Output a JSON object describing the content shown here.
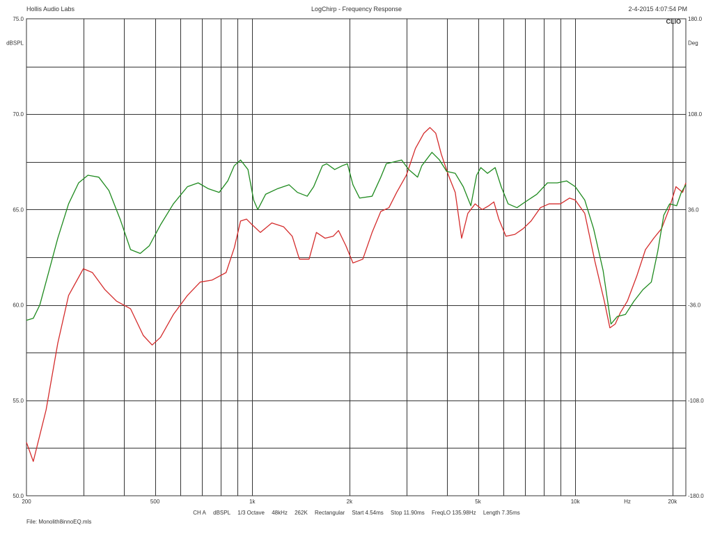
{
  "header": {
    "company": "Hollis Audio Labs",
    "title": "LogChirp - Frequency Response",
    "timestamp": "2-4-2015 4:07:54 PM",
    "brand": "CLIO"
  },
  "params": {
    "channel": "CH A",
    "unit": "dBSPL",
    "smoothing": "1/3 Octave",
    "sample_rate": "48kHz",
    "fft": "262K",
    "window": "Rectangular",
    "start": "Start 4.54ms",
    "stop": "Stop 11.90ms",
    "freq_lo": "FreqLO 135.98Hz",
    "length": "Length 7.35ms"
  },
  "footer": {
    "file": "File: Monolith8innoEQ.mls"
  },
  "colors": {
    "series_red": "#d42b2b",
    "series_green": "#1e8a1e",
    "grid": "#333333"
  },
  "chart_data": {
    "type": "line",
    "xscale": "log",
    "xlim": [
      200,
      22000
    ],
    "ylim": [
      50,
      75
    ],
    "y2lim": [
      -180,
      180
    ],
    "ylabel": "dBSPL",
    "y2label": "Deg",
    "xlabel": "Hz",
    "y_ticks": [
      "75.0",
      "70.0",
      "65.0",
      "60.0",
      "55.0",
      "50.0"
    ],
    "y2_ticks": [
      "180.0",
      "108.0",
      "36.0",
      "-36.0",
      "-108.0",
      "-180.0"
    ],
    "x_ticks": [
      {
        "f": 200,
        "label": "200"
      },
      {
        "f": 500,
        "label": "500"
      },
      {
        "f": 1000,
        "label": "1k"
      },
      {
        "f": 2000,
        "label": "2k"
      },
      {
        "f": 5000,
        "label": "5k"
      },
      {
        "f": 10000,
        "label": "10k"
      },
      {
        "f": 20000,
        "label": "20k"
      }
    ],
    "x_grid": [
      300,
      400,
      600,
      700,
      800,
      900,
      3000,
      4000,
      6000,
      7000,
      8000,
      9000
    ],
    "series": [
      {
        "color": "#d42b2b",
        "points": [
          [
            200,
            52.8
          ],
          [
            210,
            51.8
          ],
          [
            230,
            54.5
          ],
          [
            250,
            58.0
          ],
          [
            270,
            60.5
          ],
          [
            300,
            61.9
          ],
          [
            320,
            61.7
          ],
          [
            350,
            60.8
          ],
          [
            380,
            60.2
          ],
          [
            420,
            59.8
          ],
          [
            460,
            58.4
          ],
          [
            490,
            57.9
          ],
          [
            520,
            58.3
          ],
          [
            570,
            59.5
          ],
          [
            630,
            60.5
          ],
          [
            690,
            61.2
          ],
          [
            750,
            61.3
          ],
          [
            830,
            61.7
          ],
          [
            880,
            63.0
          ],
          [
            920,
            64.4
          ],
          [
            960,
            64.5
          ],
          [
            1000,
            64.2
          ],
          [
            1060,
            63.8
          ],
          [
            1150,
            64.3
          ],
          [
            1250,
            64.1
          ],
          [
            1330,
            63.6
          ],
          [
            1400,
            62.4
          ],
          [
            1500,
            62.4
          ],
          [
            1580,
            63.8
          ],
          [
            1680,
            63.5
          ],
          [
            1780,
            63.6
          ],
          [
            1850,
            63.9
          ],
          [
            1950,
            63.1
          ],
          [
            2050,
            62.2
          ],
          [
            2200,
            62.4
          ],
          [
            2350,
            63.8
          ],
          [
            2500,
            64.9
          ],
          [
            2650,
            65.1
          ],
          [
            2800,
            65.9
          ],
          [
            3000,
            66.8
          ],
          [
            3200,
            68.2
          ],
          [
            3400,
            69.0
          ],
          [
            3550,
            69.3
          ],
          [
            3700,
            69.0
          ],
          [
            3850,
            67.9
          ],
          [
            4050,
            66.8
          ],
          [
            4250,
            65.9
          ],
          [
            4450,
            63.5
          ],
          [
            4650,
            64.8
          ],
          [
            4900,
            65.3
          ],
          [
            5150,
            65.0
          ],
          [
            5400,
            65.2
          ],
          [
            5600,
            65.4
          ],
          [
            5800,
            64.5
          ],
          [
            6100,
            63.6
          ],
          [
            6500,
            63.7
          ],
          [
            6900,
            64.0
          ],
          [
            7300,
            64.4
          ],
          [
            7800,
            65.1
          ],
          [
            8300,
            65.3
          ],
          [
            9000,
            65.3
          ],
          [
            9600,
            65.6
          ],
          [
            10000,
            65.5
          ],
          [
            10700,
            64.8
          ],
          [
            11500,
            62.3
          ],
          [
            12300,
            60.2
          ],
          [
            12800,
            58.8
          ],
          [
            13300,
            59.0
          ],
          [
            13800,
            59.6
          ],
          [
            14500,
            60.2
          ],
          [
            15500,
            61.5
          ],
          [
            16500,
            62.9
          ],
          [
            17500,
            63.5
          ],
          [
            18500,
            64.0
          ],
          [
            19500,
            65.0
          ],
          [
            20500,
            66.2
          ],
          [
            21500,
            65.9
          ],
          [
            22000,
            66.4
          ]
        ]
      },
      {
        "color": "#1e8a1e",
        "points": [
          [
            200,
            59.2
          ],
          [
            210,
            59.3
          ],
          [
            220,
            60.0
          ],
          [
            235,
            61.8
          ],
          [
            250,
            63.5
          ],
          [
            270,
            65.3
          ],
          [
            290,
            66.4
          ],
          [
            310,
            66.8
          ],
          [
            335,
            66.7
          ],
          [
            360,
            66.0
          ],
          [
            390,
            64.5
          ],
          [
            420,
            62.9
          ],
          [
            450,
            62.7
          ],
          [
            480,
            63.1
          ],
          [
            520,
            64.2
          ],
          [
            570,
            65.3
          ],
          [
            630,
            66.2
          ],
          [
            680,
            66.4
          ],
          [
            730,
            66.1
          ],
          [
            790,
            65.9
          ],
          [
            840,
            66.5
          ],
          [
            880,
            67.3
          ],
          [
            920,
            67.6
          ],
          [
            970,
            67.1
          ],
          [
            1010,
            65.5
          ],
          [
            1040,
            65.0
          ],
          [
            1100,
            65.8
          ],
          [
            1200,
            66.1
          ],
          [
            1300,
            66.3
          ],
          [
            1380,
            65.9
          ],
          [
            1480,
            65.7
          ],
          [
            1550,
            66.2
          ],
          [
            1650,
            67.3
          ],
          [
            1700,
            67.4
          ],
          [
            1800,
            67.1
          ],
          [
            1900,
            67.3
          ],
          [
            1970,
            67.4
          ],
          [
            2050,
            66.3
          ],
          [
            2150,
            65.6
          ],
          [
            2350,
            65.7
          ],
          [
            2500,
            66.7
          ],
          [
            2600,
            67.4
          ],
          [
            2750,
            67.5
          ],
          [
            2900,
            67.6
          ],
          [
            3050,
            67.1
          ],
          [
            3250,
            66.7
          ],
          [
            3350,
            67.3
          ],
          [
            3600,
            68.0
          ],
          [
            3800,
            67.6
          ],
          [
            4000,
            67.0
          ],
          [
            4250,
            66.9
          ],
          [
            4500,
            66.2
          ],
          [
            4750,
            65.2
          ],
          [
            4950,
            66.8
          ],
          [
            5100,
            67.2
          ],
          [
            5350,
            66.9
          ],
          [
            5650,
            67.2
          ],
          [
            5900,
            66.2
          ],
          [
            6200,
            65.3
          ],
          [
            6600,
            65.1
          ],
          [
            7000,
            65.4
          ],
          [
            7600,
            65.8
          ],
          [
            8200,
            66.4
          ],
          [
            8800,
            66.4
          ],
          [
            9400,
            66.5
          ],
          [
            10000,
            66.2
          ],
          [
            10700,
            65.5
          ],
          [
            11400,
            64.0
          ],
          [
            12200,
            61.8
          ],
          [
            12900,
            59.0
          ],
          [
            13500,
            59.4
          ],
          [
            14300,
            59.5
          ],
          [
            15200,
            60.2
          ],
          [
            16200,
            60.8
          ],
          [
            17200,
            61.2
          ],
          [
            18000,
            62.8
          ],
          [
            18800,
            64.7
          ],
          [
            19600,
            65.3
          ],
          [
            20600,
            65.2
          ],
          [
            21300,
            65.9
          ],
          [
            22000,
            66.3
          ]
        ]
      }
    ]
  }
}
